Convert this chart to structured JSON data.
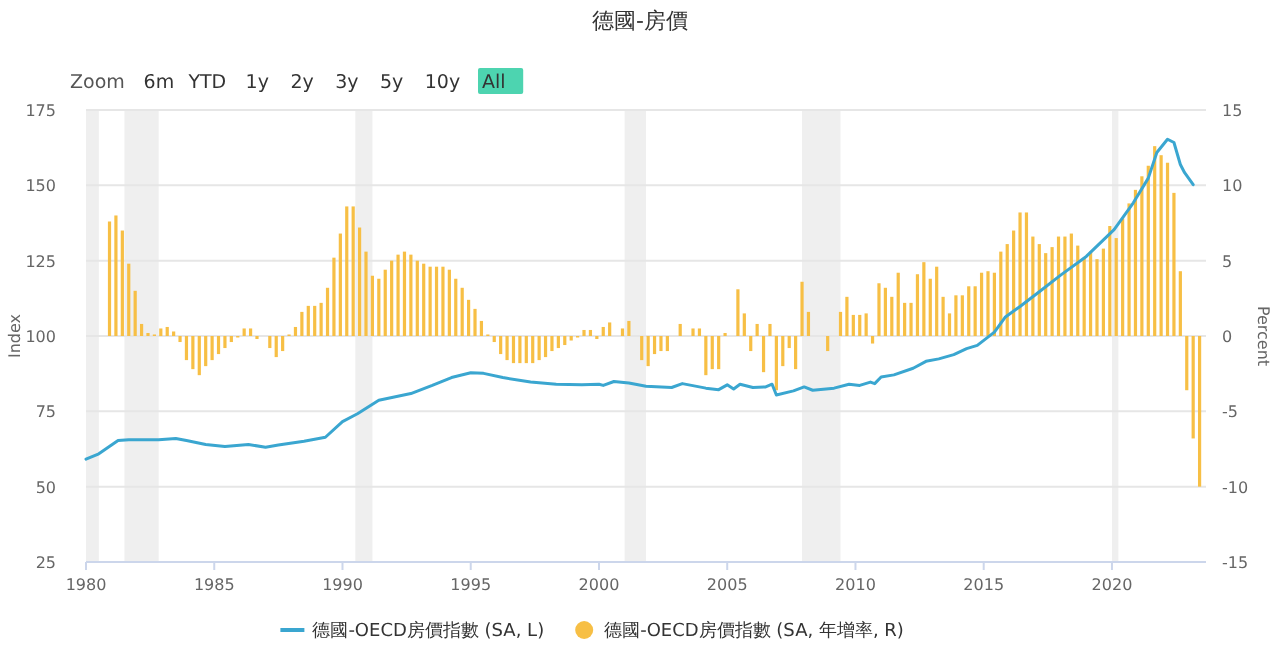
{
  "chart_data": {
    "type": "bar",
    "title": "德國-房價",
    "annotations": [
      "Zoom",
      "6m",
      "YTD",
      "1y",
      "2y",
      "3y",
      "5y",
      "10y",
      "All"
    ],
    "ylabel": "Index",
    "y2label": "Percent",
    "xlim": [
      "1980-01",
      "2023-09"
    ],
    "xticks": [
      "1980",
      "1985",
      "1990",
      "1995",
      "2000",
      "2005",
      "2010",
      "2015",
      "2020"
    ],
    "ylim": [
      25,
      175
    ],
    "yticks": [
      25,
      50,
      75,
      100,
      125,
      150,
      175
    ],
    "y2lim": [
      -15,
      15
    ],
    "y2ticks": [
      -15,
      -10,
      -5,
      0,
      5,
      10,
      15
    ],
    "grid": "y",
    "legend": "bottom",
    "bands": [
      {
        "axis": "x",
        "from": "1980-01",
        "to": "1980-07",
        "color": "#efefef"
      },
      {
        "axis": "x",
        "from": "1981-07",
        "to": "1982-11",
        "color": "#efefef"
      },
      {
        "axis": "x",
        "from": "1990-07",
        "to": "1991-03",
        "color": "#efefef"
      },
      {
        "axis": "x",
        "from": "2001-01",
        "to": "2001-11",
        "color": "#efefef"
      },
      {
        "axis": "x",
        "from": "2007-12",
        "to": "2009-06",
        "color": "#efefef"
      },
      {
        "axis": "x",
        "from": "2020-01",
        "to": "2020-04",
        "color": "#efefef"
      }
    ],
    "series": [
      {
        "name": "德國-OECD房價指數 (SA, L)",
        "type": "line",
        "color": "#3aa6d0",
        "x": [
          "1980-01",
          "1980-07",
          "1981-04",
          "1981-09",
          "1982-11",
          "1983-07",
          "1983-12",
          "1984-09",
          "1985-06",
          "1986-05",
          "1987-01",
          "1987-07",
          "1988-07",
          "1989-05",
          "1990-01",
          "1990-08",
          "1991-06",
          "1992-09",
          "1993-07",
          "1994-04",
          "1995-01",
          "1995-07",
          "1996-04",
          "1997-05",
          "1998-05",
          "1999-05",
          "2000-01",
          "2000-03",
          "2000-08",
          "2001-03",
          "2001-11",
          "2002-11",
          "2003-04",
          "2004-03",
          "2004-09",
          "2005-01",
          "2005-04",
          "2005-07",
          "2006-01",
          "2006-07",
          "2006-10",
          "2006-12",
          "2007-08",
          "2008-01",
          "2008-05",
          "2009-03",
          "2009-10",
          "2010-03",
          "2010-08",
          "2010-10",
          "2011-01",
          "2011-07",
          "2012-04",
          "2012-10",
          "2013-04",
          "2013-11",
          "2014-05",
          "2014-10",
          "2015-06",
          "2015-11",
          "2016-06",
          "2017-03",
          "2018-01",
          "2019-01",
          "2020-02",
          "2020-11",
          "2021-06",
          "2021-10",
          "2022-03",
          "2022-06",
          "2022-09",
          "2022-11",
          "2023-03"
        ],
        "values": [
          59.1,
          60.9,
          65.3,
          65.6,
          65.6,
          66,
          65.3,
          64,
          63.3,
          64,
          63.1,
          63.8,
          65.1,
          66.4,
          71.6,
          74.2,
          78.7,
          80.9,
          83.6,
          86.2,
          87.8,
          87.6,
          86.2,
          84.7,
          84,
          83.8,
          84,
          83.6,
          84.9,
          84.4,
          83.3,
          82.9,
          84.2,
          82.7,
          82.2,
          83.8,
          82.4,
          84,
          82.9,
          83.1,
          84,
          80.4,
          81.8,
          83.1,
          82,
          82.7,
          84,
          83.6,
          84.7,
          84.2,
          86.4,
          87.1,
          89.3,
          91.6,
          92.4,
          93.8,
          95.8,
          96.9,
          101.3,
          106.2,
          109.8,
          114.7,
          120.2,
          126.4,
          135.3,
          144.2,
          152.4,
          160.9,
          165.3,
          164.2,
          156.9,
          154.2,
          150.2
        ]
      },
      {
        "name": "德國-OECD房價指數 (SA, 年增率, R)",
        "axis": "y2",
        "color": "#f7bf45",
        "x": [
          "1980-12",
          "1981-03",
          "1981-06",
          "1981-09",
          "1981-12",
          "1982-03",
          "1982-06",
          "1982-09",
          "1982-12",
          "1983-03",
          "1983-06",
          "1983-09",
          "1983-12",
          "1984-03",
          "1984-06",
          "1984-09",
          "1984-12",
          "1985-03",
          "1985-06",
          "1985-09",
          "1985-12",
          "1986-03",
          "1986-06",
          "1986-09",
          "1987-03",
          "1987-06",
          "1987-09",
          "1987-12",
          "1988-03",
          "1988-06",
          "1988-09",
          "1988-12",
          "1989-03",
          "1989-06",
          "1989-09",
          "1989-12",
          "1990-03",
          "1990-06",
          "1990-09",
          "1990-12",
          "1991-03",
          "1991-06",
          "1991-09",
          "1991-12",
          "1992-03",
          "1992-06",
          "1992-09",
          "1992-12",
          "1993-03",
          "1993-06",
          "1993-09",
          "1993-12",
          "1994-03",
          "1994-06",
          "1994-09",
          "1994-12",
          "1995-03",
          "1995-06",
          "1995-09",
          "1995-12",
          "1996-03",
          "1996-06",
          "1996-09",
          "1996-12",
          "1997-03",
          "1997-06",
          "1997-09",
          "1997-12",
          "1998-03",
          "1998-06",
          "1998-09",
          "1998-12",
          "1999-03",
          "1999-06",
          "1999-09",
          "1999-12",
          "2000-03",
          "2000-06",
          "2000-12",
          "2001-03",
          "2001-09",
          "2001-12",
          "2002-03",
          "2002-06",
          "2002-09",
          "2003-03",
          "2003-09",
          "2003-12",
          "2004-03",
          "2004-06",
          "2004-09",
          "2004-12",
          "2005-06",
          "2005-09",
          "2005-12",
          "2006-03",
          "2006-06",
          "2006-09",
          "2006-12",
          "2007-03",
          "2007-06",
          "2007-09",
          "2007-12",
          "2008-03",
          "2008-12",
          "2009-06",
          "2009-09",
          "2009-12",
          "2010-03",
          "2010-06",
          "2010-09",
          "2010-12",
          "2011-03",
          "2011-06",
          "2011-09",
          "2011-12",
          "2012-03",
          "2012-06",
          "2012-09",
          "2012-12",
          "2013-03",
          "2013-06",
          "2013-09",
          "2013-12",
          "2014-03",
          "2014-06",
          "2014-09",
          "2014-12",
          "2015-03",
          "2015-06",
          "2015-09",
          "2015-12",
          "2016-03",
          "2016-06",
          "2016-09",
          "2016-12",
          "2017-03",
          "2017-06",
          "2017-09",
          "2017-12",
          "2018-03",
          "2018-06",
          "2018-09",
          "2018-12",
          "2019-03",
          "2019-06",
          "2019-09",
          "2019-12",
          "2020-03",
          "2020-06",
          "2020-09",
          "2020-12",
          "2021-03",
          "2021-06",
          "2021-09",
          "2021-12",
          "2022-03",
          "2022-06",
          "2022-09",
          "2022-12",
          "2023-03",
          "2023-06"
        ],
        "values": [
          7.6,
          8.0,
          7.0,
          4.8,
          3.0,
          0.8,
          0.2,
          0.1,
          0.5,
          0.6,
          0.3,
          -0.4,
          -1.6,
          -2.2,
          -2.6,
          -2.0,
          -1.6,
          -1.2,
          -0.8,
          -0.4,
          -0.1,
          0.5,
          0.5,
          -0.2,
          -0.8,
          -1.4,
          -1.0,
          0.1,
          0.6,
          1.6,
          2.0,
          2.0,
          2.2,
          3.2,
          5.2,
          6.8,
          8.6,
          8.6,
          7.2,
          5.6,
          4.0,
          3.8,
          4.4,
          5.0,
          5.4,
          5.6,
          5.4,
          5.0,
          4.8,
          4.6,
          4.6,
          4.6,
          4.4,
          3.8,
          3.2,
          2.4,
          1.8,
          1.0,
          0.1,
          -0.4,
          -1.2,
          -1.6,
          -1.8,
          -1.8,
          -1.8,
          -1.8,
          -1.6,
          -1.4,
          -1.0,
          -0.8,
          -0.6,
          -0.3,
          -0.1,
          0.4,
          0.4,
          -0.2,
          0.6,
          0.9,
          0.5,
          1.0,
          -1.6,
          -2.0,
          -1.2,
          -1.0,
          -1.0,
          0.8,
          0.5,
          0.5,
          -2.6,
          -2.2,
          -2.2,
          0.2,
          3.1,
          1.5,
          -1.0,
          0.8,
          -2.4,
          0.8,
          -3.6,
          -2.0,
          -0.8,
          -2.2,
          3.6,
          1.6,
          -1.0,
          1.6,
          2.6,
          1.4,
          1.4,
          1.5,
          -0.5,
          3.5,
          3.2,
          2.6,
          4.2,
          2.2,
          2.2,
          4.1,
          4.9,
          3.8,
          4.6,
          2.6,
          1.5,
          2.7,
          2.7,
          3.3,
          3.3,
          4.2,
          4.3,
          4.2,
          5.6,
          6.1,
          7.0,
          8.2,
          8.2,
          6.6,
          6.1,
          5.5,
          5.9,
          6.6,
          6.6,
          6.8,
          6.0,
          5.2,
          5.6,
          5.1,
          5.8,
          7.3,
          6.5,
          7.8,
          8.8,
          9.7,
          10.6,
          11.3,
          12.6,
          12.0,
          11.5,
          9.5,
          4.3,
          -3.6,
          -6.8,
          -10.0
        ]
      }
    ]
  }
}
